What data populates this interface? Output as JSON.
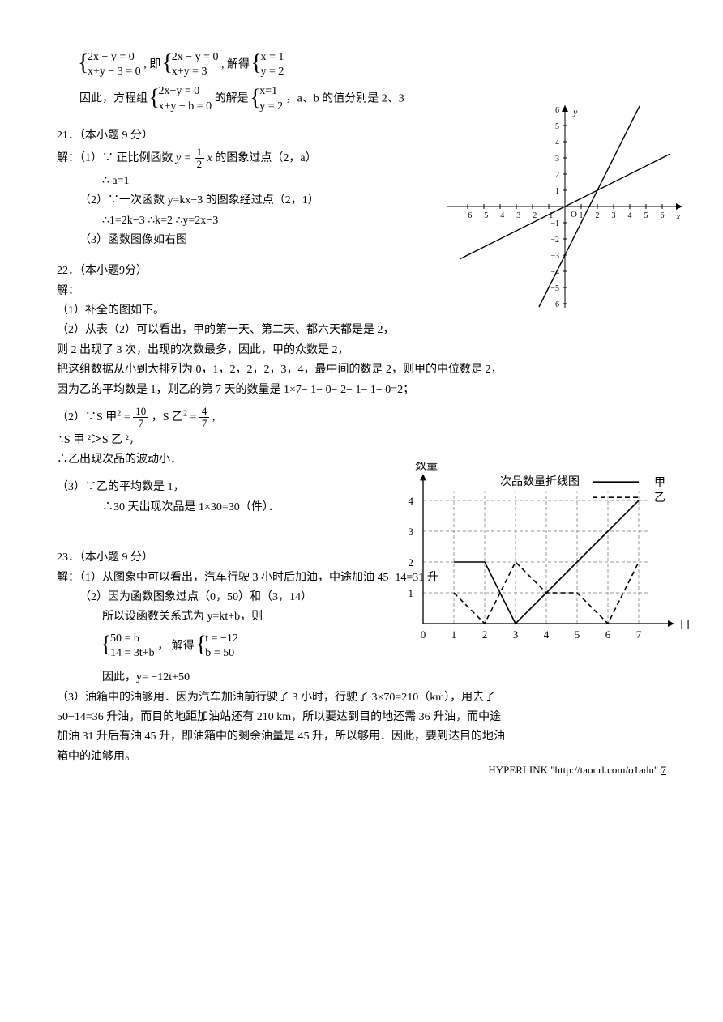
{
  "top_section": {
    "eq1_a": "2x − y = 0",
    "eq1_b": "x+y − 3 = 0",
    "mid1": ", 即",
    "eq2_a": "2x − y = 0",
    "eq2_b": "x+y = 3",
    "mid2": ", 解得",
    "eq3_a": "x = 1",
    "eq3_b": "y = 2",
    "line2_pre": "因此，方程组",
    "eq4_a": "2x−y = 0",
    "eq4_b": "x+y − b = 0",
    "line2_mid": "的解是",
    "eq5_a": "x=1",
    "eq5_b": "y = 2",
    "line2_post": "，a、b 的值分别是 2、3"
  },
  "q21": {
    "title": "21．（本小题 9 分）",
    "l1a": "解：（1）∵  正比例函数 ",
    "l1b_eq_left": "y = ",
    "l1b_frac_num": "1",
    "l1b_frac_den": "2",
    "l1b_eq_right": " x",
    "l1c": " 的图象过点（2，a）",
    "l2": "∴  a=1",
    "l3": "（2）∵一次函数 y=kx−3 的图象经过点（2，1）",
    "l4": "∴1=2k−3       ∴k=2       ∴y=2x−3",
    "l5": "（3）函数图像如右图"
  },
  "q22": {
    "title": "22．（本小题9分）",
    "l0": "解：",
    "l1": "（1）补全的图如下。",
    "l2": "（2）从表（2）可以看出，甲的第一天、第二天、都六天都是是 2，",
    "l3": "则 2 出现了 3 次，出现的次数最多，因此，甲的众数是 2，",
    "l4": "把这组数据从小到大排列为 0，1，2，2，2，3，4，最中间的数是 2，则甲的中位数是 2，",
    "l5": "因为乙的平均数是 1，则乙的第 7 天的数量是 1×7− 1− 0− 2− 1− 1− 0=2；",
    "l6a": "（2）∵S 甲",
    "l6b": "= ",
    "frac1_num": "10",
    "frac1_den": "7",
    "l6c": "，S 乙",
    "l6d": "= ",
    "frac2_num": "4",
    "frac2_den": "7",
    "l6e": " ,",
    "l7": "∴S 甲 ²＞S 乙 ²，",
    "l8": "∴乙出现次品的波动小．",
    "l9": "（3）∵乙的平均数是 1，",
    "l10": "∴30 天出现次品是 1×30=30（件）．"
  },
  "q23": {
    "title": "23．（本小题 9 分）",
    "l1": "解：（1）从图象中可以看出，汽车行驶 3 小时后加油，中途加油 45−14=31 升",
    "l2": "（2）因为函数图象过点（0，50）和（3，14）",
    "l3": "所以设函数关系式为 y=kt+b，则",
    "eq_a": "50 = b",
    "eq_b": "14 = 3t+b",
    "mid": "， 解得",
    "eq2_a": "t = −12",
    "eq2_b": "b = 50",
    "l5": "因此，y= −12t+50",
    "l6": "（3）油箱中的油够用．因为汽车加油前行驶了 3 小时，行驶了 3×70=210（km），用去了",
    "l7": "50−14=36 升油，而目的地距加油站还有 210 km，所以要达到目的地还需 36 升油，而中途",
    "l8": "加油 31 升后有油 45 升，即油箱中的剩余油量是 45 升，所以够用．因此，要到达目的地油",
    "l9": "箱中的油够用。"
  },
  "footer": {
    "link": "HYPERLINK \"http://taourl.com/o1adn\" ",
    "page": "7"
  },
  "coord_graph": {
    "x_ticks": [
      -6,
      -5,
      -4,
      -3,
      -2,
      -1,
      1,
      2,
      3,
      4,
      5,
      6
    ],
    "y_ticks": [
      -6,
      -5,
      -4,
      -3,
      -2,
      -1,
      1,
      2,
      3,
      4,
      5,
      6
    ],
    "xlabel": "x",
    "ylabel": "y",
    "origin": "O",
    "line1_slope": 0.5,
    "line1_intercept": 0,
    "line2_slope": 2,
    "line2_intercept": -3,
    "axis_color": "#000000",
    "line_color": "#000000",
    "xlim": [
      -6.5,
      6.5
    ],
    "ylim": [
      -6.5,
      6.5
    ]
  },
  "line_chart": {
    "title": "次品数量折线图",
    "ylabel": "数量",
    "xlabel": "日期",
    "legend_a": "甲",
    "legend_b": "乙",
    "x_ticks": [
      0,
      1,
      2,
      3,
      4,
      5,
      6,
      7
    ],
    "y_ticks": [
      1,
      2,
      3,
      4
    ],
    "series_a": [
      2,
      2,
      0,
      1,
      2,
      3,
      4
    ],
    "series_b": [
      1,
      0,
      2,
      1,
      1,
      0,
      2
    ],
    "color": "#000000",
    "grid_color": "#999999",
    "a_style": "solid",
    "b_style": "dashed"
  }
}
